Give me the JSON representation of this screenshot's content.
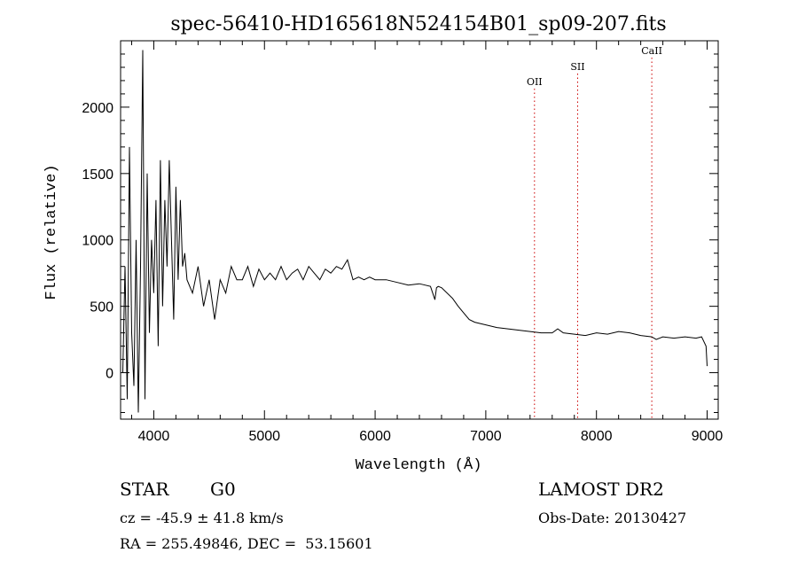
{
  "chart_data": {
    "type": "line",
    "title": "spec-56410-HD165618N524154B01_sp09-207.fits",
    "xlabel": "Wavelength (Å)",
    "ylabel": "Flux (relative)",
    "xlim": [
      3700,
      9100
    ],
    "ylim": [
      -350,
      2500
    ],
    "xticks": [
      4000,
      5000,
      6000,
      7000,
      8000,
      9000
    ],
    "yticks": [
      0,
      500,
      1000,
      1500,
      2000
    ],
    "grid": false,
    "line_color": "#000000",
    "marker_color": "#cc0000",
    "lines": [
      {
        "name": "OII",
        "x": 7440
      },
      {
        "name": "SII",
        "x": 7830
      },
      {
        "name": "CaII",
        "x": 8500
      }
    ],
    "series": [
      {
        "x": [
          3720,
          3740,
          3760,
          3780,
          3800,
          3820,
          3840,
          3860,
          3880,
          3900,
          3920,
          3940,
          3960,
          3980,
          4000,
          4020,
          4040,
          4060,
          4080,
          4100,
          4120,
          4140,
          4160,
          4180,
          4200,
          4220,
          4240,
          4260,
          4280,
          4300,
          4350,
          4400,
          4450,
          4500,
          4550,
          4600,
          4650,
          4700,
          4750,
          4800,
          4850,
          4900,
          4950,
          5000,
          5050,
          5100,
          5150,
          5200,
          5250,
          5300,
          5350,
          5400,
          5450,
          5500,
          5550,
          5600,
          5650,
          5700,
          5750,
          5800,
          5850,
          5900,
          5950,
          6000,
          6100,
          6200,
          6300,
          6400,
          6500,
          6540,
          6555,
          6570,
          6600,
          6700,
          6750,
          6800,
          6850,
          6900,
          6950,
          7000,
          7100,
          7200,
          7300,
          7400,
          7500,
          7600,
          7650,
          7700,
          7800,
          7900,
          8000,
          8100,
          8200,
          8300,
          8400,
          8500,
          8540,
          8600,
          8700,
          8800,
          8900,
          8950,
          8990,
          9000
        ],
        "y": [
          0,
          800,
          -200,
          1700,
          300,
          -100,
          1000,
          -300,
          800,
          2430,
          -200,
          1500,
          300,
          1000,
          600,
          1300,
          200,
          1600,
          500,
          1300,
          800,
          1600,
          1000,
          400,
          1400,
          700,
          1300,
          800,
          900,
          700,
          600,
          800,
          500,
          700,
          400,
          700,
          600,
          800,
          700,
          700,
          800,
          650,
          780,
          700,
          750,
          700,
          800,
          700,
          750,
          780,
          700,
          800,
          750,
          700,
          780,
          750,
          800,
          780,
          850,
          700,
          720,
          700,
          720,
          700,
          700,
          680,
          660,
          670,
          650,
          550,
          640,
          650,
          640,
          560,
          500,
          450,
          400,
          380,
          370,
          360,
          340,
          330,
          320,
          310,
          300,
          300,
          330,
          300,
          290,
          280,
          300,
          290,
          310,
          300,
          280,
          270,
          250,
          270,
          260,
          270,
          260,
          270,
          200,
          50
        ]
      }
    ]
  },
  "info": {
    "object_class": "STAR",
    "subclass": "G0",
    "survey": "LAMOST DR2",
    "redshift": "cz = -45.9 ± 41.8 km/s",
    "obs_date": "Obs-Date: 20130427",
    "coords": "RA = 255.49846, DEC =  53.15601"
  }
}
